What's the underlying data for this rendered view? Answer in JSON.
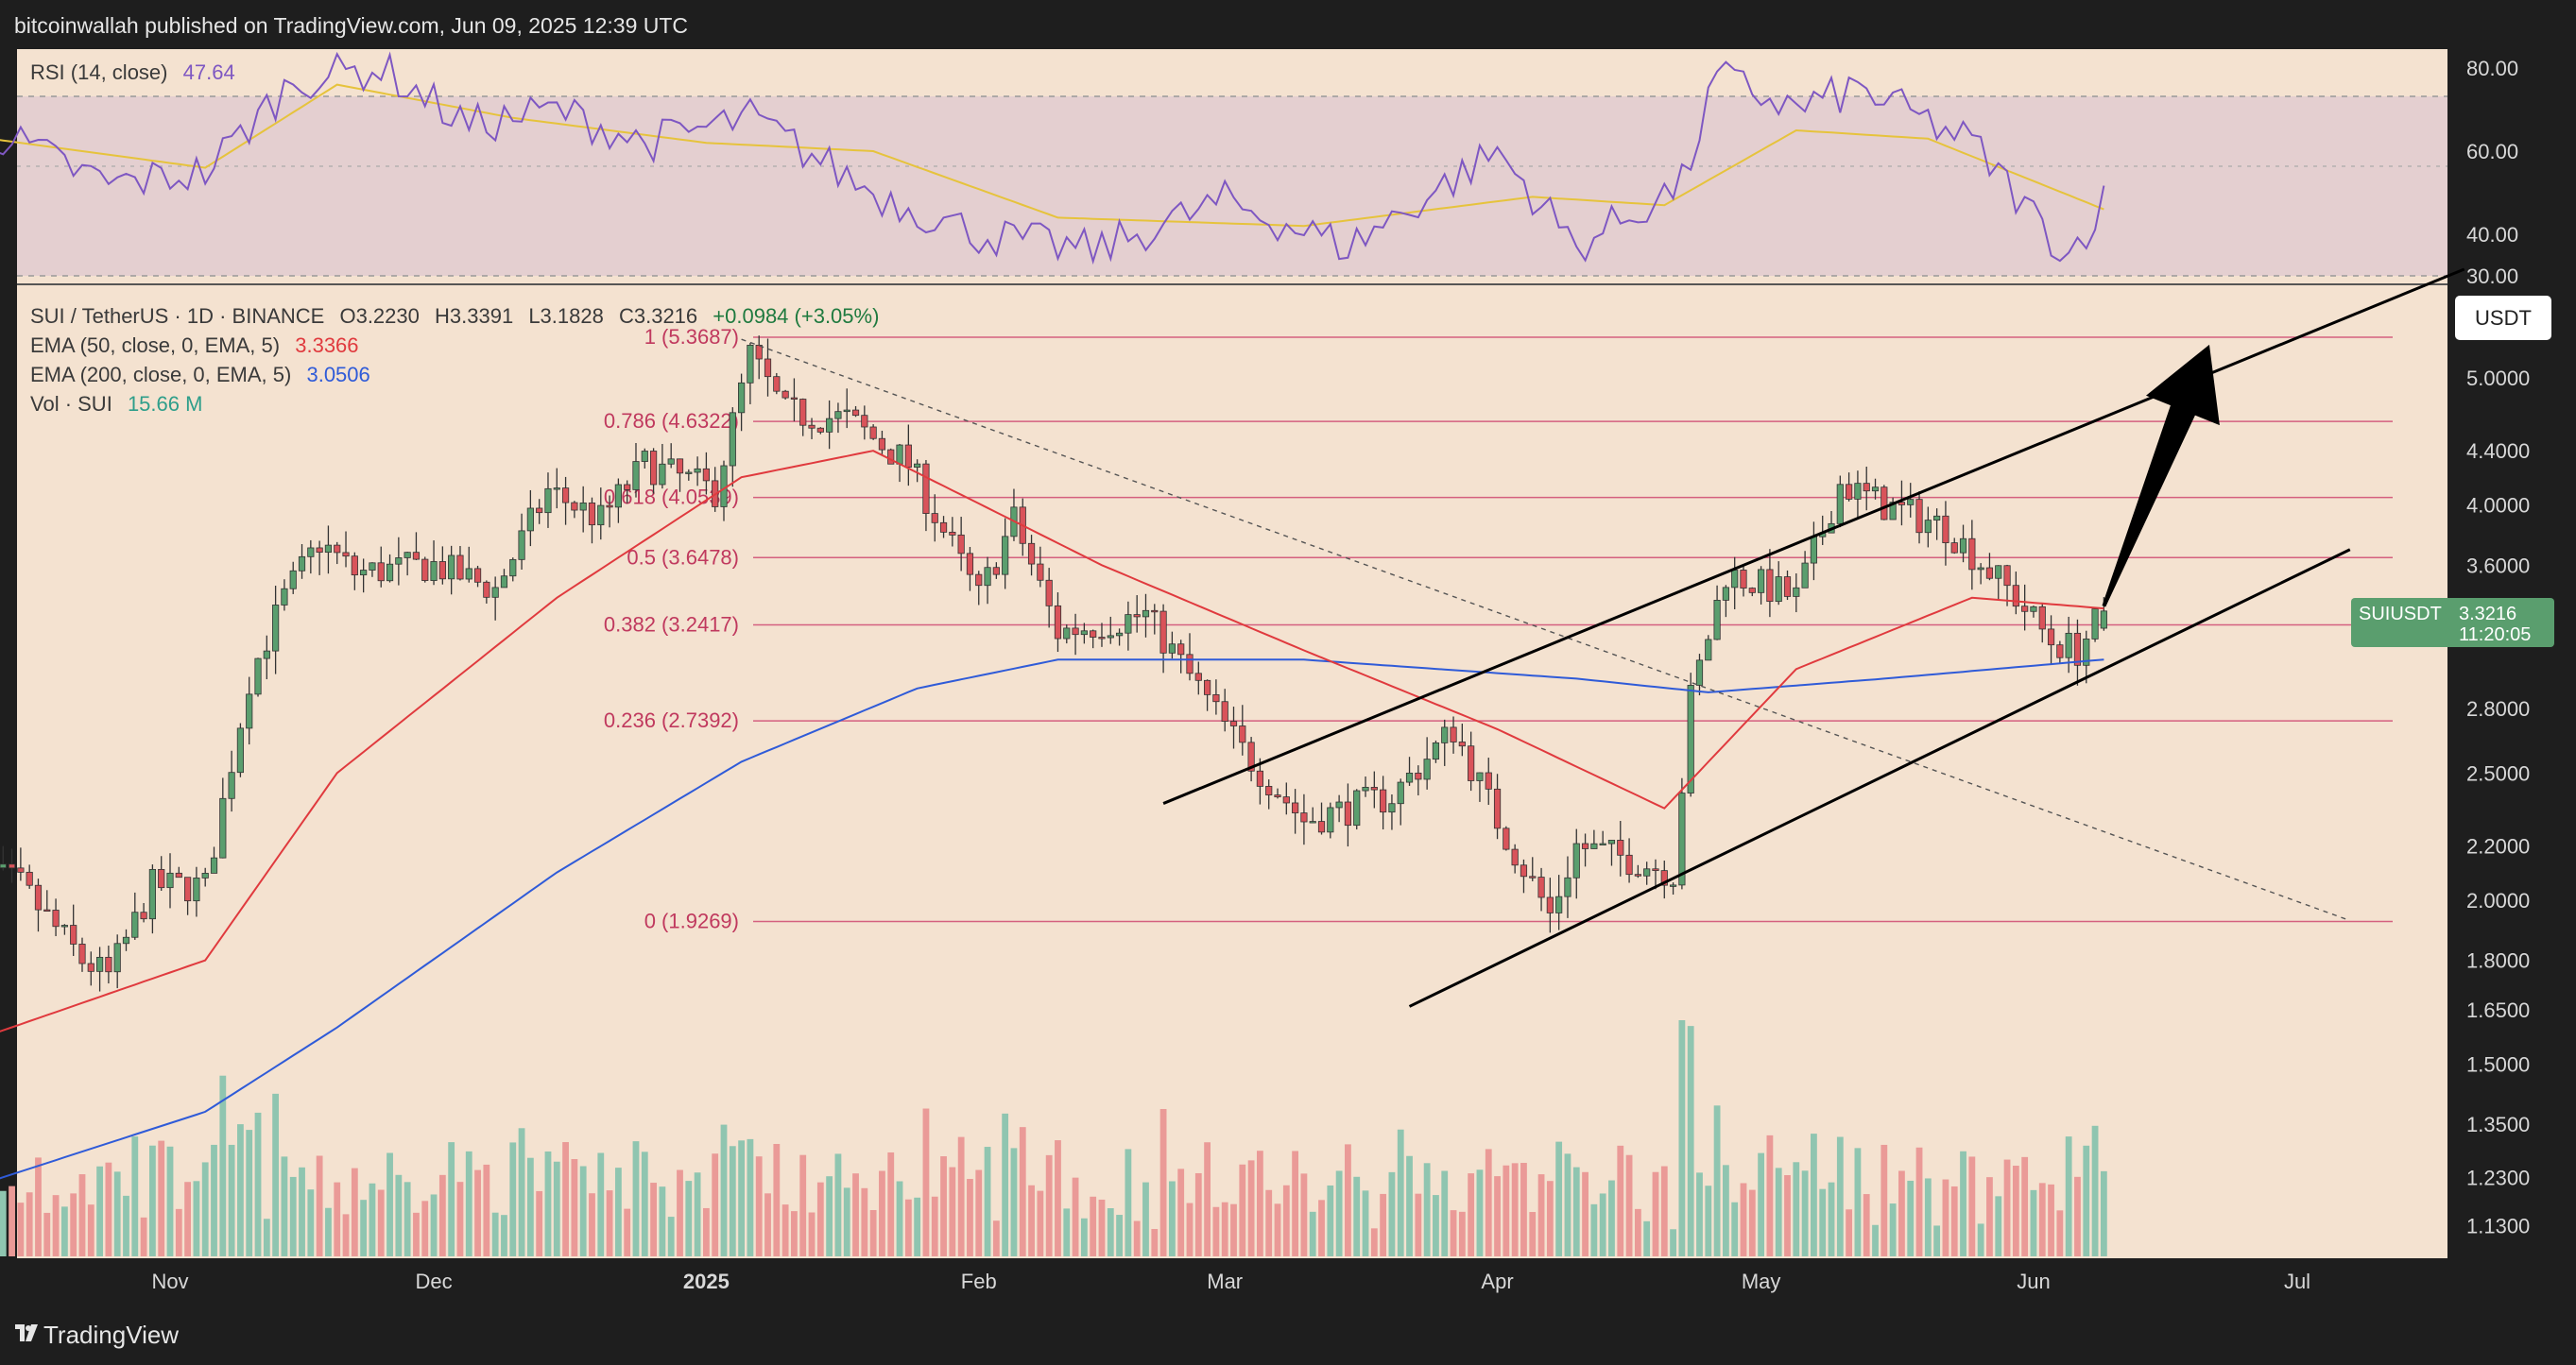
{
  "header": {
    "published": "bitcoinwallah published on TradingView.com, Jun 09, 2025 12:39 UTC"
  },
  "footer": {
    "brand": "TradingView",
    "logo_icon": "tradingview-logo-icon"
  },
  "rsi_legend": {
    "label": "RSI (14, close)",
    "value": "47.64",
    "color": "#7e57c2"
  },
  "main_legend": {
    "symbol": "SUI / TetherUS · 1D · BINANCE",
    "open": "O3.2230",
    "high": "H3.3391",
    "low": "L3.1828",
    "close": "C3.3216",
    "change": "+0.0984 (+3.05%)",
    "ema50_label": "EMA (50, close, 0, EMA, 5)",
    "ema50_value": "3.3366",
    "ema200_label": "EMA (200, close, 0, EMA, 5)",
    "ema200_value": "3.0506",
    "vol_label": "Vol · SUI",
    "vol_value": "15.66 M"
  },
  "currency_button": "USDT",
  "price_tag": {
    "symbol": "SUIUSDT",
    "price": "3.3216",
    "countdown": "11:20:05"
  },
  "colors": {
    "background": "#f4e2d0",
    "up": "#5a9e6e",
    "down": "#d9535a",
    "ema50": "#e03a3e",
    "ema200": "#2f5bd8",
    "fib": "#d4607f",
    "rsi_line": "#7e57c2",
    "rsi_ma": "#e6c33c"
  },
  "chart_data": [
    {
      "type": "line",
      "title": "RSI (14, close)",
      "y_ticks": [
        "80.00",
        "60.00",
        "40.00",
        "30.00"
      ],
      "ylim": [
        28,
        84
      ],
      "bands": [
        30,
        50,
        70
      ],
      "series": [
        {
          "name": "RSI",
          "x": [
            "Oct 08",
            "Oct 25",
            "Nov 05",
            "Nov 15",
            "Nov 25",
            "Dec 05",
            "Dec 15",
            "Dec 25",
            "Jan 06",
            "Jan 20",
            "Feb 01",
            "Feb 14",
            "Mar 01",
            "Mar 15",
            "Apr 01",
            "Apr 10",
            "Apr 22",
            "Apr 26",
            "May 05",
            "May 12",
            "May 25",
            "Jun 02",
            "Jun 05",
            "Jun 09"
          ],
          "values": [
            68,
            52,
            55,
            77,
            80,
            66,
            70,
            62,
            68,
            50,
            40,
            36,
            48,
            37,
            60,
            37,
            52,
            78,
            70,
            75,
            62,
            42,
            35,
            48
          ]
        },
        {
          "name": "RSI MA",
          "x": [
            "Oct 08",
            "Nov 05",
            "Nov 20",
            "Dec 10",
            "Jan 01",
            "Jan 20",
            "Feb 10",
            "Mar 10",
            "Apr 05",
            "Apr 20",
            "May 05",
            "May 20",
            "Jun 09"
          ],
          "values": [
            64,
            56,
            76,
            68,
            62,
            60,
            44,
            42,
            49,
            47,
            65,
            63,
            46
          ]
        }
      ]
    },
    {
      "type": "candlestick",
      "title": "SUI / TetherUS · 1D · BINANCE",
      "y_scale": "log",
      "ylim": [
        1.06,
        6.4
      ],
      "y_ticks": [
        "5.0000",
        "4.4000",
        "4.0000",
        "3.6000",
        "2.8000",
        "2.5000",
        "2.2000",
        "2.0000",
        "1.8000",
        "1.6500",
        "1.5000",
        "1.3500",
        "1.2300",
        "1.1300"
      ],
      "x_ticks": [
        "Nov",
        "Dec",
        "2025",
        "Feb",
        "Mar",
        "Apr",
        "May",
        "Jun",
        "Jul"
      ],
      "close_path": {
        "dates": [
          "Oct 08",
          "Oct 15",
          "Oct 22",
          "Oct 25",
          "Oct 30",
          "Nov 05",
          "Nov 10",
          "Nov 14",
          "Nov 18",
          "Nov 22",
          "Dec 01",
          "Dec 08",
          "Dec 14",
          "Dec 20",
          "Dec 25",
          "Jan 02",
          "Jan 06",
          "Jan 10",
          "Jan 17",
          "Jan 24",
          "Feb 01",
          "Feb 05",
          "Feb 10",
          "Feb 20",
          "Feb 26",
          "Mar 03",
          "Mar 10",
          "Mar 20",
          "Mar 27",
          "Apr 01",
          "Apr 07",
          "Apr 10",
          "Apr 16",
          "Apr 21",
          "Apr 23",
          "Apr 27",
          "May 05",
          "May 10",
          "May 15",
          "May 22",
          "May 30",
          "Jun 03",
          "Jun 06",
          "Jun 09"
        ],
        "values": [
          2.15,
          2.05,
          1.8,
          1.75,
          2.05,
          2.05,
          2.95,
          3.4,
          3.75,
          3.55,
          3.6,
          3.45,
          4.1,
          3.9,
          4.3,
          4.1,
          5.2,
          4.7,
          4.65,
          4.3,
          3.4,
          3.9,
          3.2,
          3.3,
          2.9,
          2.6,
          2.3,
          2.4,
          2.7,
          2.3,
          1.95,
          2.2,
          2.15,
          2.1,
          2.85,
          3.55,
          3.4,
          4.15,
          4.0,
          3.85,
          3.4,
          3.15,
          3.1,
          3.3216
        ]
      },
      "ema50": {
        "dates": [
          "Oct 08",
          "Nov 05",
          "Nov 20",
          "Dec 15",
          "Jan 05",
          "Jan 20",
          "Feb 15",
          "Mar 10",
          "Apr 01",
          "Apr 20",
          "May 05",
          "May 25",
          "Jun 09"
        ],
        "values": [
          1.55,
          1.8,
          2.5,
          3.4,
          4.2,
          4.4,
          3.6,
          3.1,
          2.7,
          2.35,
          3.0,
          3.4,
          3.3366
        ]
      },
      "ema200": {
        "dates": [
          "Oct 08",
          "Nov 05",
          "Nov 20",
          "Dec 15",
          "Jan 05",
          "Jan 25",
          "Feb 10",
          "Mar 10",
          "Apr 10",
          "Apr 25",
          "May 15",
          "Jun 09"
        ],
        "values": [
          1.2,
          1.38,
          1.6,
          2.1,
          2.55,
          2.9,
          3.05,
          3.05,
          2.95,
          2.88,
          2.95,
          3.0506
        ]
      },
      "fibonacci": [
        {
          "label": "1 (5.3687)",
          "value": 5.3687
        },
        {
          "label": "0.786 (4.6322)",
          "value": 4.6322
        },
        {
          "label": "0.618 (4.0539)",
          "value": 4.0539
        },
        {
          "label": "0.5 (3.6478)",
          "value": 3.6478
        },
        {
          "label": "0.382 (3.2417)",
          "value": 3.2417
        },
        {
          "label": "0.236 (2.7392)",
          "value": 2.7392
        },
        {
          "label": "0 (1.9269)",
          "value": 1.9269
        }
      ],
      "channel_upper": {
        "dates": [
          "Feb 22",
          "Jul 20"
        ],
        "values": [
          2.37,
          6.05
        ]
      },
      "channel_lower": {
        "dates": [
          "Mar 22",
          "Jul 07"
        ],
        "values": [
          1.66,
          3.7
        ]
      },
      "downtrend_dotted": {
        "dates": [
          "Jan 05",
          "Jul 07"
        ],
        "values": [
          5.35,
          1.93
        ]
      },
      "arrow": {
        "from": [
          "Jun 09",
          3.35
        ],
        "to": [
          "Jun 21",
          5.3
        ]
      }
    },
    {
      "type": "bar",
      "title": "Vol · SUI",
      "note": "daily volume bars, last value 15.66 M"
    }
  ]
}
